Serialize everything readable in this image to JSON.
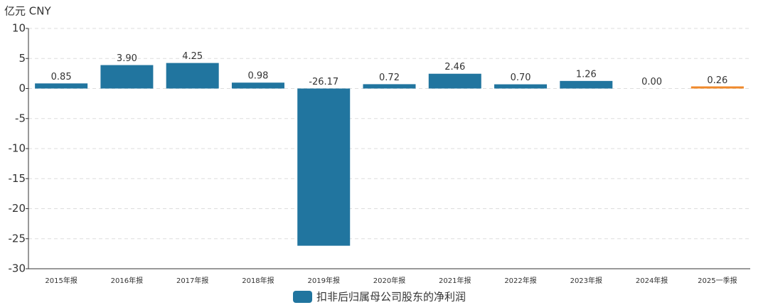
{
  "chart_data": {
    "type": "bar",
    "y_axis_label": "亿元  CNY",
    "categories": [
      "2015年报",
      "2016年报",
      "2017年报",
      "2018年报",
      "2019年报",
      "2020年报",
      "2021年报",
      "2022年报",
      "2023年报",
      "2024年报",
      "2025一季报"
    ],
    "series": [
      {
        "name": "扣非后归属母公司股东的净利润",
        "color": "#21759f",
        "values": [
          0.85,
          3.9,
          4.25,
          0.98,
          -26.17,
          0.72,
          2.46,
          0.7,
          1.26,
          0,
          0.26
        ],
        "value_labels": [
          "0.85",
          "3.90",
          "4.25",
          "0.98",
          "-26.17",
          "0.72",
          "2.46",
          "0.70",
          "1.26",
          "0.00",
          "0.26"
        ],
        "point_colors": [
          "#21759f",
          "#21759f",
          "#21759f",
          "#21759f",
          "#21759f",
          "#21759f",
          "#21759f",
          "#21759f",
          "#21759f",
          "#21759f",
          "#f0892b"
        ]
      }
    ],
    "ylim": [
      -30,
      10
    ],
    "yticks": [
      -30,
      -25,
      -20,
      -15,
      -10,
      -5,
      0,
      5,
      10
    ],
    "grid": true
  }
}
